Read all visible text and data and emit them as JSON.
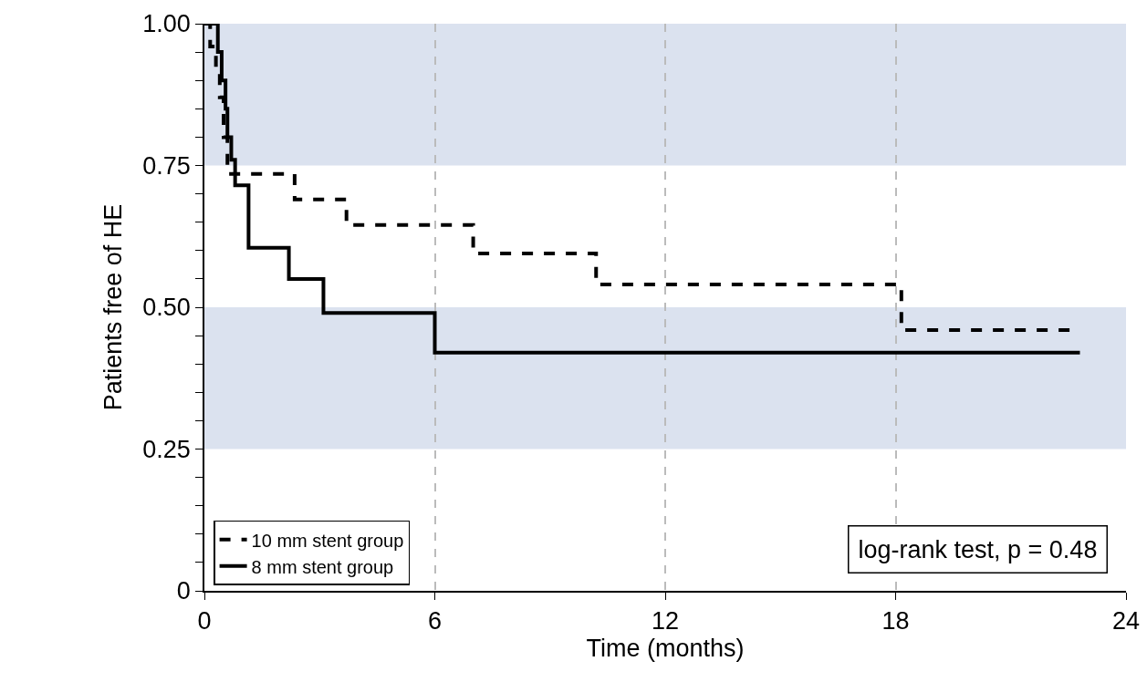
{
  "chart_data": {
    "type": "step",
    "xlabel": "Time (months)",
    "ylabel": "Patients free of HE",
    "xlim": [
      0,
      24
    ],
    "xticks": [
      0,
      6,
      12,
      18,
      24
    ],
    "ylim": [
      0,
      1
    ],
    "yticks": [
      {
        "value": 0,
        "label": "0"
      },
      {
        "value": 0.05,
        "label": null
      },
      {
        "value": 0.1,
        "label": null
      },
      {
        "value": 0.15,
        "label": null
      },
      {
        "value": 0.2,
        "label": null
      },
      {
        "value": 0.25,
        "label": "0.25"
      },
      {
        "value": 0.3,
        "label": null
      },
      {
        "value": 0.35,
        "label": null
      },
      {
        "value": 0.4,
        "label": null
      },
      {
        "value": 0.45,
        "label": null
      },
      {
        "value": 0.5,
        "label": "0.50"
      },
      {
        "value": 0.55,
        "label": null
      },
      {
        "value": 0.6,
        "label": null
      },
      {
        "value": 0.65,
        "label": null
      },
      {
        "value": 0.7,
        "label": null
      },
      {
        "value": 0.75,
        "label": "0.75"
      },
      {
        "value": 0.8,
        "label": null
      },
      {
        "value": 0.85,
        "label": null
      },
      {
        "value": 0.9,
        "label": null
      },
      {
        "value": 0.95,
        "label": null
      },
      {
        "value": 1,
        "label": "1.00"
      }
    ],
    "grid": "x",
    "legend": "bottom left",
    "marker": "none",
    "bands": [
      {
        "axis": "y",
        "from": 0.75,
        "to": 1,
        "label": null,
        "color": "#dbe2ef"
      },
      {
        "axis": "y",
        "from": 0.25,
        "to": 0.5,
        "label": null,
        "color": "#dbe2ef"
      }
    ],
    "annotations": [
      "log-rank test, p = 0.48"
    ],
    "series": [
      {
        "name": "10 mm stent group",
        "color": "#000000",
        "line_style": "dashed",
        "x": [
          0,
          0.15,
          0.3,
          0.4,
          0.5,
          0.6,
          2.35,
          3.7,
          7.0,
          10.2,
          18.15,
          22.6
        ],
        "values": [
          1,
          0.96,
          0.92,
          0.87,
          0.8,
          0.735,
          0.69,
          0.645,
          0.595,
          0.54,
          0.46,
          0.46
        ]
      },
      {
        "name": "8 mm stent group",
        "color": "#000000",
        "line_style": "solid",
        "x": [
          0,
          0.35,
          0.45,
          0.55,
          0.6,
          0.7,
          0.8,
          1.15,
          2.2,
          3.1,
          6.0,
          22.8
        ],
        "values": [
          1,
          0.95,
          0.9,
          0.85,
          0.8,
          0.76,
          0.715,
          0.605,
          0.55,
          0.49,
          0.42,
          0.42
        ]
      }
    ]
  }
}
